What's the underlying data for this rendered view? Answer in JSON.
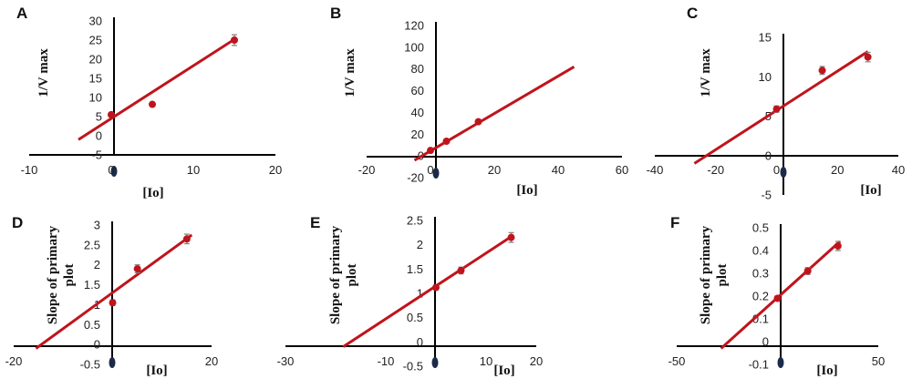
{
  "chart_data": [
    {
      "panel": "A",
      "type": "scatter",
      "xlabel": "[Io]",
      "ylabel": "1/V max",
      "xlim": [
        -10,
        20
      ],
      "ylim": [
        -5,
        30
      ],
      "x_ticks": [
        -10,
        0,
        10,
        20
      ],
      "y_ticks": [
        -5,
        0,
        5,
        10,
        15,
        20,
        25,
        30
      ],
      "points": [
        {
          "x": 0,
          "y": 5.5,
          "err": 0.5
        },
        {
          "x": 5,
          "y": 8.2,
          "err": 0.3
        },
        {
          "x": 15,
          "y": 25,
          "err": 1.4
        }
      ],
      "fit_line": {
        "x": [
          -4,
          15.3
        ],
        "y": [
          -1,
          25.6
        ]
      }
    },
    {
      "panel": "B",
      "type": "scatter",
      "xlabel": "[Io]",
      "ylabel": "1/V max",
      "xlim": [
        -20,
        60
      ],
      "ylim": [
        -20,
        120
      ],
      "x_ticks": [
        -20,
        0,
        20,
        40,
        60
      ],
      "y_ticks": [
        -20,
        0,
        20,
        40,
        60,
        80,
        100,
        120
      ],
      "points": [
        {
          "x": 0,
          "y": 5,
          "err": 1
        },
        {
          "x": 5,
          "y": 13.5,
          "err": 1
        },
        {
          "x": 15,
          "y": 31.5,
          "err": 1.5
        }
      ],
      "fit_line": {
        "x": [
          -5,
          45
        ],
        "y": [
          -4,
          82
        ]
      }
    },
    {
      "panel": "C",
      "type": "scatter",
      "xlabel": "[Io]",
      "ylabel": "1/V max",
      "xlim": [
        -40,
        40
      ],
      "ylim": [
        -5,
        15
      ],
      "x_ticks": [
        -40,
        -20,
        0,
        20,
        40
      ],
      "y_ticks": [
        -5,
        0,
        5,
        10,
        15
      ],
      "points": [
        {
          "x": 0,
          "y": 5.9,
          "err": 0.4
        },
        {
          "x": 15,
          "y": 10.8,
          "err": 0.5
        },
        {
          "x": 30,
          "y": 12.5,
          "err": 0.6
        }
      ],
      "fit_line": {
        "x": [
          -27,
          30
        ],
        "y": [
          -1,
          13.2
        ]
      }
    },
    {
      "panel": "D",
      "type": "scatter",
      "xlabel": "[Io]",
      "ylabel": "Slope of primary plot",
      "xlim": [
        -20,
        20
      ],
      "ylim": [
        -0.5,
        3
      ],
      "x_ticks": [
        -20,
        20
      ],
      "y_ticks": [
        -0.5,
        0,
        0.5,
        1,
        1.5,
        2,
        2.5,
        3
      ],
      "points": [
        {
          "x": 0,
          "y": 1.05,
          "err": 0.07
        },
        {
          "x": 5,
          "y": 1.9,
          "err": 0.1
        },
        {
          "x": 15,
          "y": 2.65,
          "err": 0.12
        }
      ],
      "fit_line": {
        "x": [
          -15.5,
          16
        ],
        "y": [
          -0.1,
          2.75
        ]
      }
    },
    {
      "panel": "E",
      "type": "scatter",
      "xlabel": "[Io]",
      "ylabel": "Slope of primary plot",
      "xlim": [
        -30,
        20
      ],
      "ylim": [
        -0.5,
        2.5
      ],
      "x_ticks": [
        -30,
        -10,
        10,
        20
      ],
      "y_ticks": [
        -0.5,
        0,
        0.5,
        1,
        1.5,
        2,
        2.5
      ],
      "points": [
        {
          "x": 0,
          "y": 1.12,
          "err": 0.05
        },
        {
          "x": 5,
          "y": 1.47,
          "err": 0.07
        },
        {
          "x": 15,
          "y": 2.15,
          "err": 0.1
        }
      ],
      "fit_line": {
        "x": [
          -18.5,
          15.5
        ],
        "y": [
          -0.1,
          2.2
        ]
      }
    },
    {
      "panel": "F",
      "type": "scatter",
      "xlabel": "[Io]",
      "ylabel": "Slope of primary plot",
      "xlim": [
        -50,
        50
      ],
      "ylim": [
        -0.1,
        0.5
      ],
      "x_ticks": [
        -50,
        50
      ],
      "y_ticks": [
        -0.1,
        0,
        0.1,
        0.2,
        0.3,
        0.4,
        0.5
      ],
      "points": [
        {
          "x": 0,
          "y": 0.19,
          "err": 0.01
        },
        {
          "x": 15,
          "y": 0.31,
          "err": 0.015
        },
        {
          "x": 30,
          "y": 0.42,
          "err": 0.02
        }
      ],
      "fit_line": {
        "x": [
          -28,
          31
        ],
        "y": [
          -0.03,
          0.44
        ]
      }
    }
  ],
  "colors": {
    "fit_line": "#c0141c",
    "marker": "#c0141c",
    "axis": "#000000",
    "error_bar": "#808080",
    "origin_dot": "#1c2a4a"
  }
}
